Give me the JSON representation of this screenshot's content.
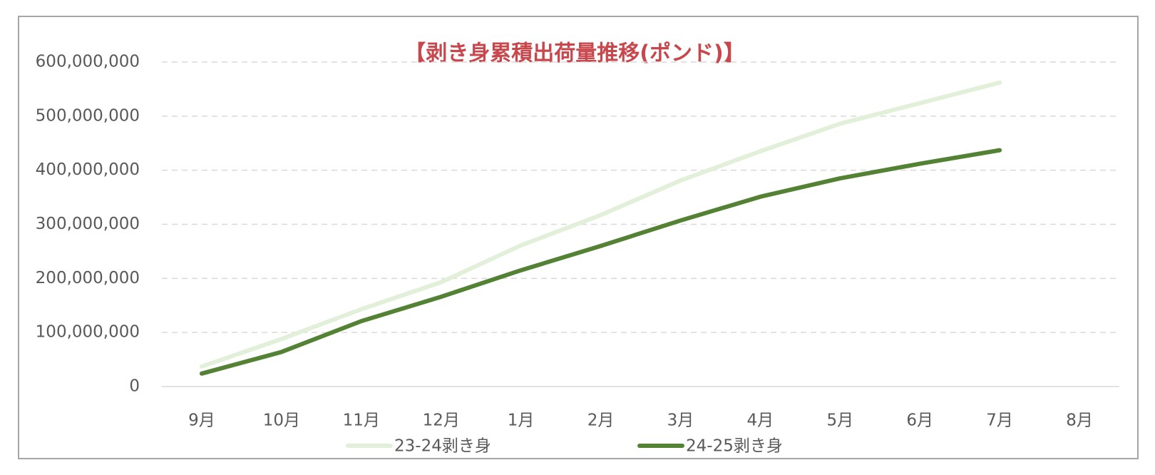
{
  "chart_data": {
    "type": "line",
    "title": "【剥き身累積出荷量推移(ポンド)】",
    "categories": [
      "9月",
      "10月",
      "11月",
      "12月",
      "1月",
      "2月",
      "3月",
      "4月",
      "5月",
      "6月",
      "7月",
      "8月"
    ],
    "series": [
      {
        "name": "23-24剥き身",
        "color": "#e2efd9",
        "values": [
          37000000,
          88000000,
          143000000,
          193000000,
          261000000,
          317000000,
          381000000,
          435000000,
          486000000,
          524000000,
          562000000,
          null
        ]
      },
      {
        "name": "24-25剥き身",
        "color": "#548235",
        "values": [
          24000000,
          64000000,
          121000000,
          166000000,
          215000000,
          260000000,
          307000000,
          351000000,
          385000000,
          412000000,
          437000000,
          null
        ]
      }
    ],
    "ylim": [
      0,
      600000000
    ],
    "yticks": [
      0,
      {
        "value": 100000000,
        "label": "100,000,000"
      },
      {
        "value": 200000000,
        "label": "200,000,000"
      },
      {
        "value": 300000000,
        "label": "300,000,000"
      },
      {
        "value": 400000000,
        "label": "400,000,000"
      },
      {
        "value": 500000000,
        "label": "500,000,000"
      },
      {
        "value": 600000000,
        "label": "600,000,000"
      }
    ],
    "grid": true,
    "legend": "bottom"
  }
}
